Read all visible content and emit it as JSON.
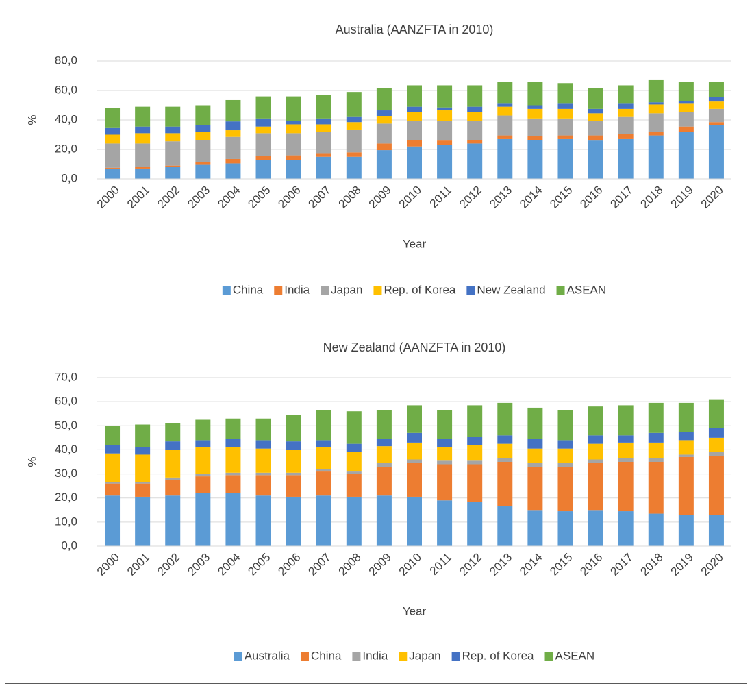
{
  "chart_data": [
    {
      "type": "stacked-bar",
      "title": "Australia (AANZFTA in 2010)",
      "x_label": "Year",
      "y_label": "%",
      "categories": [
        "2000",
        "2001",
        "2002",
        "2003",
        "2004",
        "2005",
        "2006",
        "2007",
        "2008",
        "2009",
        "2010",
        "2011",
        "2012",
        "2013",
        "2014",
        "2015",
        "2016",
        "2017",
        "2018",
        "2019",
        "2020"
      ],
      "series": [
        {
          "name": "China",
          "color": "#5b9bd5",
          "values": [
            7,
            7,
            8,
            9.5,
            10.5,
            13,
            13,
            15,
            15,
            19.5,
            22,
            23,
            24,
            27,
            26.5,
            27,
            26,
            27,
            29.5,
            32,
            36.5
          ]
        },
        {
          "name": "India",
          "color": "#ed7d31",
          "values": [
            0.5,
            1,
            1,
            2,
            3,
            2.5,
            3,
            2,
            3,
            4.5,
            4.5,
            3,
            2.5,
            2.5,
            2.5,
            2.5,
            3.5,
            3.5,
            2.5,
            3.5,
            2
          ]
        },
        {
          "name": "Japan",
          "color": "#a5a5a5",
          "values": [
            16.5,
            16,
            16.5,
            15,
            15,
            15.5,
            15,
            15,
            15.5,
            13.5,
            13,
            13.5,
            13,
            13.5,
            12,
            11.5,
            10,
            11.5,
            12.5,
            10,
            9
          ]
        },
        {
          "name": "Rep. of Korea",
          "color": "#ffc000",
          "values": [
            6,
            7,
            5.5,
            5.5,
            4.5,
            4.5,
            6,
            5,
            5,
            5,
            6,
            7,
            6,
            6,
            6.5,
            6.5,
            5,
            5.5,
            6,
            5.5,
            5
          ]
        },
        {
          "name": "New Zealand",
          "color": "#4472c4",
          "values": [
            4.5,
            4.5,
            4.5,
            4.5,
            6,
            5.5,
            2.5,
            4,
            3.5,
            4,
            3.5,
            2,
            3.5,
            2,
            2.5,
            3.5,
            3,
            3.5,
            1.5,
            2,
            3
          ]
        },
        {
          "name": "ASEAN",
          "color": "#70ad47",
          "values": [
            13.5,
            13.5,
            13.5,
            13.5,
            14.5,
            15,
            16.5,
            16,
            17,
            15,
            14.5,
            15,
            14.5,
            15,
            16,
            14,
            14,
            12.5,
            15,
            13,
            10.5
          ]
        }
      ],
      "ylim": [
        0,
        80
      ],
      "yticks": [
        {
          "value": 0,
          "label": "0,0"
        },
        {
          "value": 20,
          "label": "20,0"
        },
        {
          "value": 40,
          "label": "40,0"
        },
        {
          "value": 60,
          "label": "60,0"
        },
        {
          "value": 80,
          "label": "80,0"
        }
      ],
      "grid": true,
      "legend": "bottom"
    },
    {
      "type": "stacked-bar",
      "title": "New Zealand (AANZFTA in 2010)",
      "x_label": "Year",
      "y_label": "%",
      "categories": [
        "2000",
        "2001",
        "2002",
        "2003",
        "2004",
        "2005",
        "2006",
        "2007",
        "2008",
        "2009",
        "2010",
        "2011",
        "2012",
        "2013",
        "2014",
        "2015",
        "2016",
        "2017",
        "2018",
        "2019",
        "2020"
      ],
      "series": [
        {
          "name": "Australia",
          "color": "#5b9bd5",
          "values": [
            21,
            20.5,
            21,
            22,
            22,
            21,
            20.5,
            21,
            20.5,
            21,
            20.5,
            19,
            18.5,
            16.5,
            15,
            14.5,
            15,
            14.5,
            13.5,
            13,
            13
          ]
        },
        {
          "name": "China",
          "color": "#ed7d31",
          "values": [
            5,
            5.5,
            6.5,
            7,
            7.5,
            8.5,
            9,
            10,
            9.5,
            12,
            14,
            15,
            15.5,
            18.5,
            18,
            18.5,
            19.5,
            20.5,
            21.5,
            24,
            24.5
          ]
        },
        {
          "name": "India",
          "color": "#a5a5a5",
          "values": [
            0.5,
            0.5,
            1,
            1,
            1,
            1,
            1,
            1,
            1,
            1.5,
            1.5,
            1.5,
            1.5,
            1.5,
            1.5,
            1.5,
            1.5,
            1.5,
            1.5,
            1,
            1.5
          ]
        },
        {
          "name": "Japan",
          "color": "#ffc000",
          "values": [
            12,
            11.5,
            11.5,
            11,
            10.5,
            10,
            9.5,
            9,
            8,
            7,
            7,
            5.5,
            6.5,
            6,
            6,
            6,
            6.5,
            6.5,
            6.5,
            6,
            6
          ]
        },
        {
          "name": "Rep. of Korea",
          "color": "#4472c4",
          "values": [
            3.5,
            3,
            3.5,
            3,
            3.5,
            3.5,
            3.5,
            3,
            3.5,
            3,
            4,
            3.5,
            3.5,
            3.5,
            4,
            3.5,
            3.5,
            3,
            4,
            3.5,
            4
          ]
        },
        {
          "name": "ASEAN",
          "color": "#70ad47",
          "values": [
            8,
            9.5,
            7.5,
            8.5,
            8.5,
            9,
            11,
            12.5,
            13.5,
            12,
            11.5,
            12,
            13,
            13.5,
            13,
            12.5,
            12,
            12.5,
            12.5,
            12,
            12
          ]
        }
      ],
      "ylim": [
        0,
        70
      ],
      "yticks": [
        {
          "value": 0,
          "label": "0,0"
        },
        {
          "value": 10,
          "label": "10,0"
        },
        {
          "value": 20,
          "label": "20,0"
        },
        {
          "value": 30,
          "label": "30,0"
        },
        {
          "value": 40,
          "label": "40,0"
        },
        {
          "value": 50,
          "label": "50,0"
        },
        {
          "value": 60,
          "label": "60,0"
        },
        {
          "value": 70,
          "label": "70,0"
        }
      ],
      "grid": true,
      "legend": "bottom"
    }
  ]
}
